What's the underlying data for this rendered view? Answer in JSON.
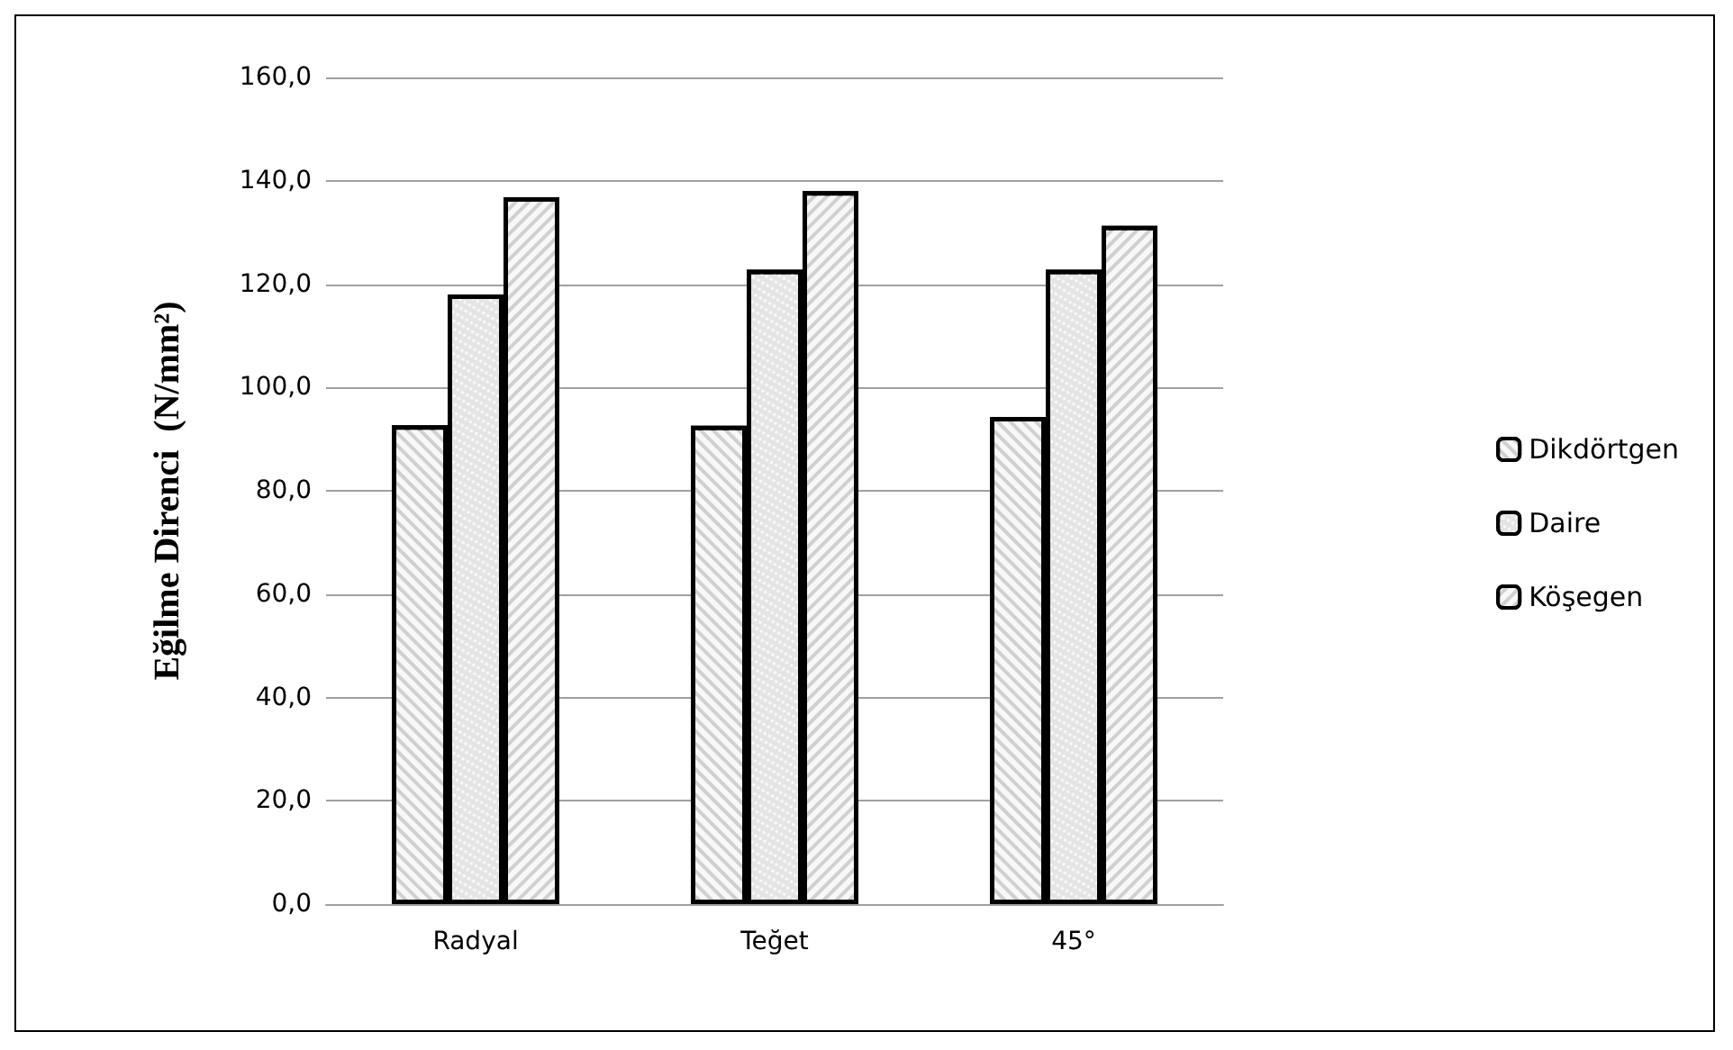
{
  "chart_data": {
    "type": "bar",
    "ylabel": "Eğilme Direnci  (N/mm²)",
    "categories": [
      "Radyal",
      "Teğet",
      "45°"
    ],
    "series": [
      {
        "name": "Dikdörtgen",
        "color": "#d0d0d0",
        "values": [
          92.7,
          92.6,
          94.3
        ]
      },
      {
        "name": "Daire",
        "color": "#e4e4e4",
        "values": [
          118,
          122.8,
          122.8
        ]
      },
      {
        "name": "Köşegen",
        "color": "#d0d0d0",
        "values": [
          136.8,
          138,
          131.3
        ]
      }
    ],
    "ylim": [
      0,
      160
    ],
    "yticks": [
      {
        "value": 0,
        "label": "0,0"
      },
      {
        "value": 20,
        "label": "20,0"
      },
      {
        "value": 40,
        "label": "40,0"
      },
      {
        "value": 60,
        "label": "60,0"
      },
      {
        "value": 80,
        "label": "80,0"
      },
      {
        "value": 100,
        "label": "100,0"
      },
      {
        "value": 120,
        "label": "120,0"
      },
      {
        "value": 140,
        "label": "140,0"
      },
      {
        "value": 160,
        "label": "160,0"
      }
    ],
    "grid": "y",
    "legend": "right"
  }
}
